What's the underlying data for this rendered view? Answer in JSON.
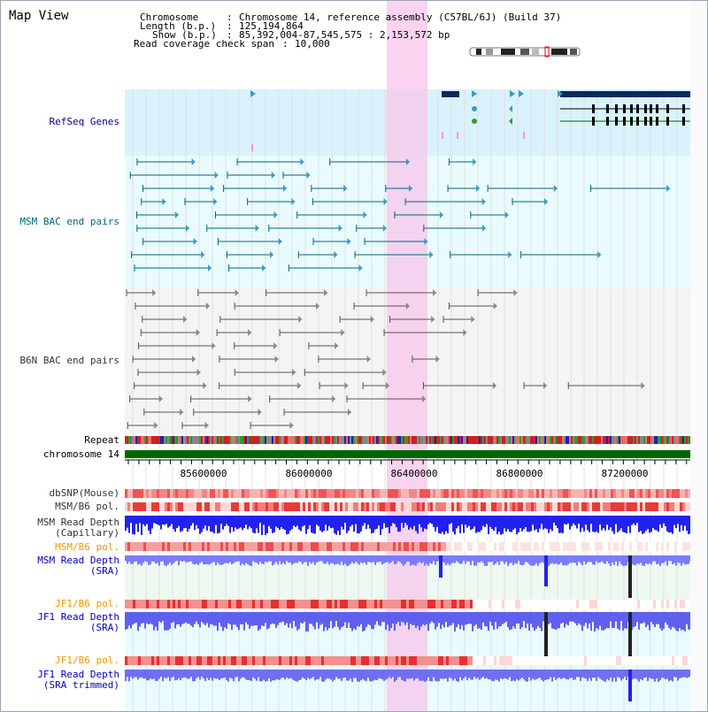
{
  "page": {
    "title": "Map View",
    "chromosome_key": "Chromosome",
    "chromosome_value": "Chromosome 14, reference assembly (C57BL/6J) (Build 37)",
    "length_key": "Length (b.p.)",
    "length_value": "125,194,864",
    "show_key": "Show (b.p.)",
    "show_value": "85,392,004-87,545,575 : 2,153,572 bp",
    "coverage_key": "Read coverage check span",
    "coverage_value": "10,000"
  },
  "tracks": {
    "refseq": "RefSeq Genes",
    "msm_bac": "MSM BAC end pairs",
    "b6n_bac": "B6N BAC end pairs",
    "repeat": "Repeat",
    "chromosome": "chromosome 14",
    "dbsnp": "dbSNP(Mouse)",
    "msm_b6_pol_1": "MSM/B6 pol.",
    "msm_depth_cap_1": "MSM Read Depth",
    "msm_depth_cap_2": "(Capillary)",
    "msm_b6_pol_2": "MSM/B6 pol.",
    "msm_depth_sra_1": "MSM Read Depth",
    "msm_depth_sra_2": "(SRA)",
    "jf1_b6_pol_1": "JF1/B6 pol.",
    "jf1_depth_sra_1": "JF1 Read Depth",
    "jf1_depth_sra_2": "(SRA)",
    "jf1_b6_pol_2": "JF1/B6 pol.",
    "jf1_depth_trim_1": "JF1 Read Depth",
    "jf1_depth_trim_2": "(SRA trimmed)"
  },
  "ruler": {
    "ticks": [
      "85600000",
      "86000000",
      "86400000",
      "86800000",
      "87200000"
    ]
  },
  "colors": {
    "refseq_label": "#000099",
    "msm_label": "#006680",
    "b6n_label": "#333333",
    "orange_label": "#ee9900",
    "blue_label": "#0000bb",
    "highlight": "#f8c8ec",
    "chromosome_bar": "#006600"
  }
}
